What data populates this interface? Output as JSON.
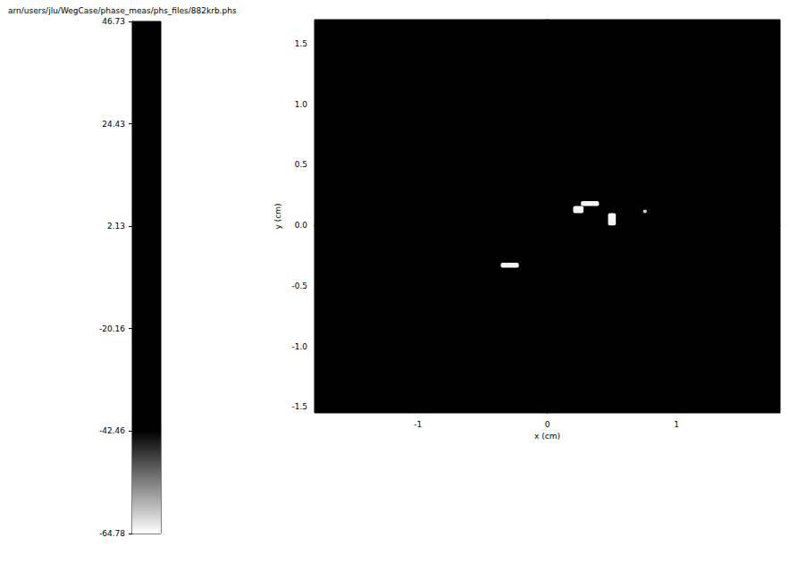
{
  "chart_data": {
    "type": "heatmap",
    "title": "arn/users/jlu/WegCase/phase_meas/phs_files/882krb.phs",
    "x_label": "x (cm)",
    "y_label": "y (cm)",
    "xlim": [
      -1.8,
      1.8
    ],
    "xticks": [
      -1,
      0,
      1
    ],
    "ylim": [
      -1.55,
      1.7
    ],
    "yticks": [
      {
        "value": 1.5,
        "label": "1.5"
      },
      {
        "value": 1.0,
        "label": "1.0"
      },
      {
        "value": 0.5,
        "label": "0.5"
      },
      {
        "value": 0.0,
        "label": "0.0"
      },
      {
        "value": -0.5,
        "label": "-0.5"
      },
      {
        "value": -1.0,
        "label": "-1.0"
      },
      {
        "value": -1.5,
        "label": "-1.5"
      }
    ],
    "cells": [
      [
        -1.8,
        1.8,
        -1.55,
        1.7,
        10
      ],
      [
        0.2,
        0.28,
        0.1,
        0.16,
        -64
      ],
      [
        0.26,
        0.4,
        0.16,
        0.2,
        -64
      ],
      [
        0.47,
        0.53,
        0.0,
        0.1,
        -64
      ],
      [
        -0.36,
        -0.22,
        -0.35,
        -0.31,
        -64
      ],
      [
        0.74,
        0.77,
        0.1,
        0.13,
        -60
      ]
    ],
    "colorbar": {
      "range": [
        -64.78,
        46.73
      ],
      "ticks": [
        46.73,
        24.43,
        2.13,
        -20.16,
        -42.46,
        -64.78
      ]
    }
  }
}
